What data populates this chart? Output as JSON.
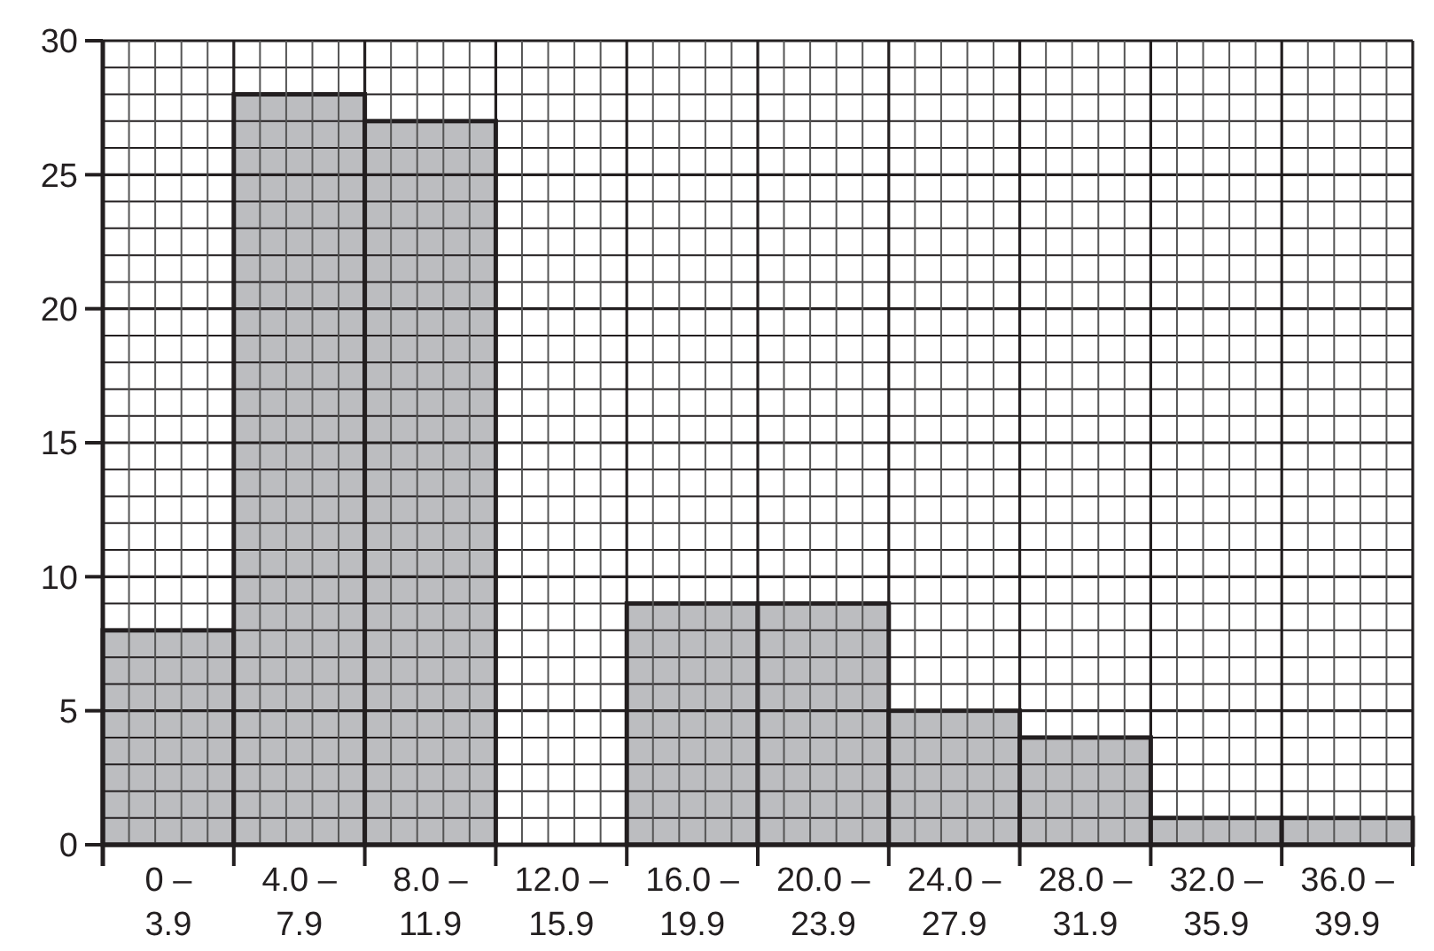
{
  "chart_data": {
    "type": "bar",
    "categories": [
      "0 –\n3.9",
      "4.0 –\n7.9",
      "8.0 –\n11.9",
      "12.0 –\n15.9",
      "16.0 –\n19.9",
      "20.0 –\n23.9",
      "24.0 –\n27.9",
      "28.0 –\n31.9",
      "32.0 –\n35.9",
      "36.0 –\n39.9"
    ],
    "values": [
      8,
      28,
      27,
      0,
      9,
      9,
      5,
      4,
      1,
      1
    ],
    "color": "#bcbdc0",
    "ylim": [
      0,
      30
    ],
    "yticks": [
      0,
      5,
      10,
      15,
      20,
      25,
      30
    ],
    "grid": true
  }
}
